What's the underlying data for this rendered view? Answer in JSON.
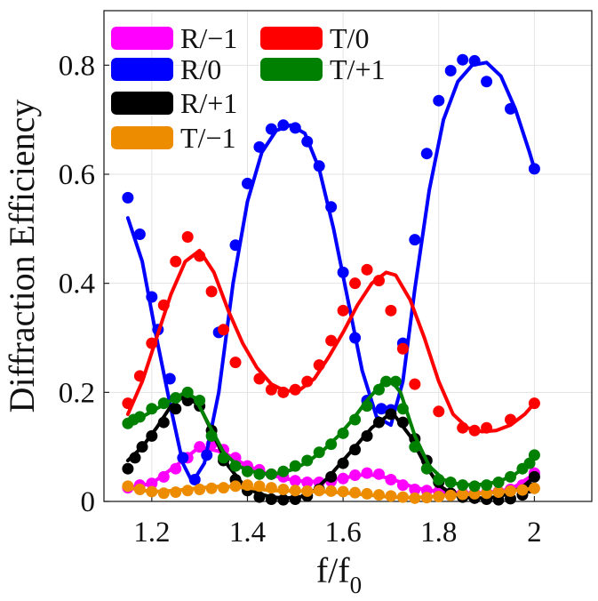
{
  "chart_data": {
    "type": "line",
    "title": "",
    "xlabel": "f/f",
    "xlabel_sub": "0",
    "ylabel": "Diffraction Efficiency",
    "xlim": [
      1.1,
      2.12
    ],
    "ylim": [
      0,
      0.9
    ],
    "xticks": [
      1.2,
      1.4,
      1.6,
      1.8,
      2.0
    ],
    "xtick_labels": [
      "1.2",
      "1.4",
      "1.6",
      "1.8",
      "2"
    ],
    "yticks": [
      0,
      0.2,
      0.4,
      0.6,
      0.8
    ],
    "ytick_labels": [
      "0",
      "0.2",
      "0.4",
      "0.6",
      "0.8"
    ],
    "grid": true,
    "legend_location": "top-left",
    "markers_x": [
      1.15,
      1.175,
      1.2,
      1.225,
      1.25,
      1.275,
      1.3,
      1.325,
      1.35,
      1.375,
      1.4,
      1.425,
      1.45,
      1.475,
      1.5,
      1.525,
      1.55,
      1.575,
      1.6,
      1.625,
      1.65,
      1.675,
      1.7,
      1.725,
      1.75,
      1.775,
      1.8,
      1.825,
      1.85,
      1.875,
      1.9,
      1.925,
      1.95,
      1.975,
      2.0
    ],
    "series": [
      {
        "name": "R/−1",
        "color": "#ff00ff",
        "points": [
          0.025,
          0.03,
          0.033,
          0.045,
          0.06,
          0.08,
          0.1,
          0.105,
          0.095,
          0.08,
          0.065,
          0.058,
          0.05,
          0.045,
          0.038,
          0.035,
          0.035,
          0.037,
          0.042,
          0.048,
          0.052,
          0.05,
          0.04,
          0.03,
          0.022,
          0.02,
          0.018,
          0.015,
          0.015,
          0.015,
          0.016,
          0.018,
          0.022,
          0.03,
          0.052
        ],
        "curve": [
          [
            1.15,
            0.025
          ],
          [
            1.2,
            0.033
          ],
          [
            1.25,
            0.065
          ],
          [
            1.3,
            0.1
          ],
          [
            1.35,
            0.09
          ],
          [
            1.4,
            0.065
          ],
          [
            1.45,
            0.048
          ],
          [
            1.5,
            0.038
          ],
          [
            1.55,
            0.036
          ],
          [
            1.6,
            0.043
          ],
          [
            1.65,
            0.05
          ],
          [
            1.7,
            0.042
          ],
          [
            1.75,
            0.025
          ],
          [
            1.8,
            0.018
          ],
          [
            1.85,
            0.015
          ],
          [
            1.9,
            0.016
          ],
          [
            1.95,
            0.022
          ],
          [
            2.0,
            0.05
          ]
        ]
      },
      {
        "name": "R/0",
        "color": "#0000ff",
        "points": [
          0.557,
          0.49,
          0.375,
          0.315,
          0.225,
          0.08,
          0.04,
          0.085,
          0.31,
          0.47,
          0.583,
          0.65,
          0.683,
          0.69,
          0.685,
          0.66,
          0.615,
          0.54,
          0.42,
          0.3,
          0.185,
          0.17,
          0.168,
          0.29,
          0.48,
          0.638,
          0.735,
          0.79,
          0.81,
          0.808,
          0.77,
          0.72,
          0.61
        ],
        "points_x": [
          1.15,
          1.175,
          1.2,
          1.213,
          1.238,
          1.265,
          1.29,
          1.315,
          1.34,
          1.375,
          1.4,
          1.425,
          1.45,
          1.475,
          1.5,
          1.525,
          1.55,
          1.575,
          1.6,
          1.625,
          1.65,
          1.68,
          1.7,
          1.725,
          1.75,
          1.775,
          1.8,
          1.825,
          1.85,
          1.875,
          1.9,
          1.95,
          2.0
        ],
        "curve": [
          [
            1.15,
            0.52
          ],
          [
            1.18,
            0.44
          ],
          [
            1.21,
            0.3
          ],
          [
            1.24,
            0.17
          ],
          [
            1.265,
            0.07
          ],
          [
            1.285,
            0.035
          ],
          [
            1.31,
            0.07
          ],
          [
            1.34,
            0.2
          ],
          [
            1.37,
            0.4
          ],
          [
            1.4,
            0.55
          ],
          [
            1.43,
            0.64
          ],
          [
            1.46,
            0.68
          ],
          [
            1.49,
            0.69
          ],
          [
            1.52,
            0.675
          ],
          [
            1.55,
            0.61
          ],
          [
            1.58,
            0.5
          ],
          [
            1.61,
            0.37
          ],
          [
            1.64,
            0.24
          ],
          [
            1.67,
            0.155
          ],
          [
            1.7,
            0.14
          ],
          [
            1.725,
            0.22
          ],
          [
            1.75,
            0.39
          ],
          [
            1.78,
            0.57
          ],
          [
            1.81,
            0.7
          ],
          [
            1.84,
            0.77
          ],
          [
            1.87,
            0.8
          ],
          [
            1.9,
            0.805
          ],
          [
            1.93,
            0.78
          ],
          [
            1.96,
            0.72
          ],
          [
            1.99,
            0.64
          ],
          [
            2.0,
            0.61
          ]
        ]
      },
      {
        "name": "R/+1",
        "color": "#000000",
        "points": [
          0.06,
          0.08,
          0.1,
          0.12,
          0.145,
          0.17,
          0.185,
          0.175,
          0.13,
          0.075,
          0.04,
          0.02,
          0.008,
          0.004,
          0.003,
          0.004,
          0.01,
          0.022,
          0.045,
          0.07,
          0.095,
          0.12,
          0.145,
          0.16,
          0.145,
          0.115,
          0.075,
          0.035,
          0.015,
          0.008,
          0.006,
          0.004,
          0.003,
          0.005,
          0.012,
          0.025,
          0.045
        ],
        "points_x": [
          1.15,
          1.165,
          1.18,
          1.2,
          1.225,
          1.25,
          1.275,
          1.3,
          1.325,
          1.35,
          1.375,
          1.4,
          1.425,
          1.45,
          1.475,
          1.5,
          1.525,
          1.55,
          1.575,
          1.6,
          1.625,
          1.65,
          1.675,
          1.7,
          1.725,
          1.75,
          1.775,
          1.8,
          1.825,
          1.85,
          1.875,
          1.9,
          1.925,
          1.95,
          1.975,
          1.99,
          2.0
        ],
        "curve": [
          [
            1.15,
            0.075
          ],
          [
            1.18,
            0.1
          ],
          [
            1.21,
            0.135
          ],
          [
            1.24,
            0.175
          ],
          [
            1.27,
            0.195
          ],
          [
            1.3,
            0.175
          ],
          [
            1.33,
            0.12
          ],
          [
            1.36,
            0.065
          ],
          [
            1.39,
            0.032
          ],
          [
            1.42,
            0.015
          ],
          [
            1.45,
            0.008
          ],
          [
            1.48,
            0.006
          ],
          [
            1.51,
            0.008
          ],
          [
            1.54,
            0.02
          ],
          [
            1.57,
            0.045
          ],
          [
            1.6,
            0.075
          ],
          [
            1.63,
            0.105
          ],
          [
            1.66,
            0.135
          ],
          [
            1.69,
            0.155
          ],
          [
            1.71,
            0.155
          ],
          [
            1.74,
            0.12
          ],
          [
            1.77,
            0.07
          ],
          [
            1.8,
            0.03
          ],
          [
            1.83,
            0.012
          ],
          [
            1.86,
            0.007
          ],
          [
            1.89,
            0.006
          ],
          [
            1.92,
            0.008
          ],
          [
            1.95,
            0.015
          ],
          [
            1.98,
            0.03
          ],
          [
            2.0,
            0.045
          ]
        ]
      },
      {
        "name": "T/−1",
        "color": "#ee8c00",
        "points": [
          0.028,
          0.022,
          0.018,
          0.015,
          0.017,
          0.02,
          0.022,
          0.024,
          0.025,
          0.028,
          0.03,
          0.028,
          0.025,
          0.022,
          0.02,
          0.019,
          0.02,
          0.019,
          0.018,
          0.016,
          0.014,
          0.012,
          0.01,
          0.008,
          0.006,
          0.007,
          0.009,
          0.011,
          0.013,
          0.014,
          0.015,
          0.017,
          0.019,
          0.021,
          0.024
        ],
        "curve": [
          [
            1.15,
            0.025
          ],
          [
            1.2,
            0.018
          ],
          [
            1.25,
            0.02
          ],
          [
            1.3,
            0.025
          ],
          [
            1.35,
            0.028
          ],
          [
            1.4,
            0.025
          ],
          [
            1.45,
            0.02
          ],
          [
            1.5,
            0.019
          ],
          [
            1.55,
            0.018
          ],
          [
            1.6,
            0.016
          ],
          [
            1.65,
            0.012
          ],
          [
            1.7,
            0.008
          ],
          [
            1.75,
            0.007
          ],
          [
            1.8,
            0.01
          ],
          [
            1.85,
            0.013
          ],
          [
            1.9,
            0.015
          ],
          [
            1.95,
            0.019
          ],
          [
            2.0,
            0.024
          ]
        ]
      },
      {
        "name": "T/0",
        "color": "#ff0000",
        "points": [
          0.18,
          0.23,
          0.29,
          0.36,
          0.44,
          0.485,
          0.45,
          0.385,
          0.315,
          0.255,
          0.225,
          0.205,
          0.2,
          0.205,
          0.22,
          0.25,
          0.295,
          0.35,
          0.4,
          0.425,
          0.405,
          0.35,
          0.28,
          0.215,
          0.165,
          0.135,
          0.13,
          0.135,
          0.15,
          0.18
        ],
        "points_x": [
          1.15,
          1.175,
          1.2,
          1.225,
          1.25,
          1.275,
          1.3,
          1.325,
          1.35,
          1.375,
          1.425,
          1.45,
          1.475,
          1.5,
          1.525,
          1.55,
          1.575,
          1.6,
          1.625,
          1.65,
          1.675,
          1.7,
          1.725,
          1.75,
          1.8,
          1.85,
          1.875,
          1.9,
          1.95,
          2.0
        ],
        "curve": [
          [
            1.15,
            0.16
          ],
          [
            1.18,
            0.22
          ],
          [
            1.21,
            0.3
          ],
          [
            1.24,
            0.38
          ],
          [
            1.27,
            0.44
          ],
          [
            1.3,
            0.46
          ],
          [
            1.33,
            0.42
          ],
          [
            1.36,
            0.35
          ],
          [
            1.39,
            0.29
          ],
          [
            1.42,
            0.245
          ],
          [
            1.45,
            0.215
          ],
          [
            1.48,
            0.202
          ],
          [
            1.51,
            0.205
          ],
          [
            1.54,
            0.225
          ],
          [
            1.57,
            0.265
          ],
          [
            1.6,
            0.31
          ],
          [
            1.63,
            0.36
          ],
          [
            1.66,
            0.4
          ],
          [
            1.69,
            0.42
          ],
          [
            1.71,
            0.415
          ],
          [
            1.74,
            0.37
          ],
          [
            1.77,
            0.3
          ],
          [
            1.8,
            0.22
          ],
          [
            1.83,
            0.16
          ],
          [
            1.86,
            0.135
          ],
          [
            1.89,
            0.128
          ],
          [
            1.92,
            0.13
          ],
          [
            1.95,
            0.14
          ],
          [
            1.98,
            0.16
          ],
          [
            2.0,
            0.18
          ]
        ]
      },
      {
        "name": "T/+1",
        "color": "#008000",
        "points": [
          0.143,
          0.15,
          0.155,
          0.17,
          0.18,
          0.19,
          0.2,
          0.185,
          0.12,
          0.08,
          0.065,
          0.055,
          0.05,
          0.05,
          0.055,
          0.065,
          0.075,
          0.09,
          0.105,
          0.125,
          0.15,
          0.175,
          0.205,
          0.22,
          0.22,
          0.17,
          0.1,
          0.06,
          0.04,
          0.035,
          0.03,
          0.028,
          0.03,
          0.035,
          0.045,
          0.06,
          0.07,
          0.085
        ],
        "points_x": [
          1.15,
          1.162,
          1.175,
          1.2,
          1.225,
          1.25,
          1.275,
          1.3,
          1.325,
          1.35,
          1.375,
          1.4,
          1.425,
          1.45,
          1.475,
          1.5,
          1.525,
          1.55,
          1.575,
          1.6,
          1.625,
          1.65,
          1.675,
          1.69,
          1.71,
          1.725,
          1.75,
          1.775,
          1.8,
          1.825,
          1.85,
          1.875,
          1.9,
          1.925,
          1.95,
          1.975,
          1.99,
          2.0
        ],
        "curve": [
          [
            1.15,
            0.14
          ],
          [
            1.18,
            0.155
          ],
          [
            1.21,
            0.17
          ],
          [
            1.24,
            0.185
          ],
          [
            1.27,
            0.2
          ],
          [
            1.29,
            0.19
          ],
          [
            1.32,
            0.14
          ],
          [
            1.35,
            0.09
          ],
          [
            1.38,
            0.065
          ],
          [
            1.41,
            0.055
          ],
          [
            1.44,
            0.05
          ],
          [
            1.47,
            0.052
          ],
          [
            1.5,
            0.06
          ],
          [
            1.53,
            0.075
          ],
          [
            1.56,
            0.095
          ],
          [
            1.59,
            0.12
          ],
          [
            1.62,
            0.15
          ],
          [
            1.65,
            0.185
          ],
          [
            1.68,
            0.215
          ],
          [
            1.7,
            0.222
          ],
          [
            1.72,
            0.2
          ],
          [
            1.75,
            0.12
          ],
          [
            1.78,
            0.065
          ],
          [
            1.81,
            0.04
          ],
          [
            1.84,
            0.032
          ],
          [
            1.87,
            0.03
          ],
          [
            1.9,
            0.032
          ],
          [
            1.93,
            0.038
          ],
          [
            1.96,
            0.05
          ],
          [
            1.99,
            0.07
          ],
          [
            2.0,
            0.085
          ]
        ]
      }
    ],
    "legend": [
      {
        "label": "R/−1",
        "color": "#ff00ff"
      },
      {
        "label": "T/0",
        "color": "#ff0000"
      },
      {
        "label": "R/0",
        "color": "#0000ff"
      },
      {
        "label": "T/+1",
        "color": "#008000"
      },
      {
        "label": "R/+1",
        "color": "#000000"
      },
      {
        "label": "T/−1",
        "color": "#ee8c00"
      }
    ]
  }
}
